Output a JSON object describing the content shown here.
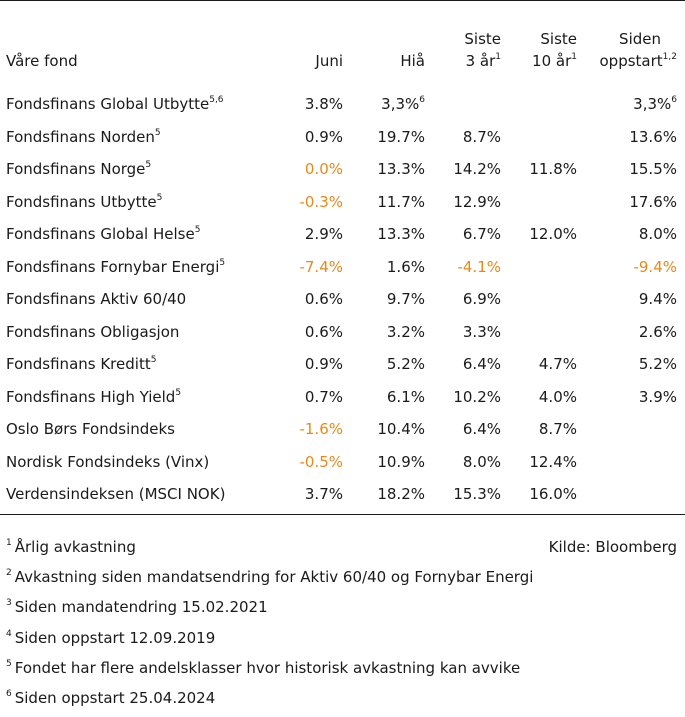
{
  "header": {
    "fund": "Våre fond",
    "juni": "Juni",
    "hia": "Hiå",
    "siste3_l1": "Siste",
    "siste3_l2": "3 år",
    "siste3_sup": "1",
    "siste10_l1": "Siste",
    "siste10_l2": "10 år",
    "siste10_sup": "1",
    "siden_l1": "Siden",
    "siden_l2": "oppstart",
    "siden_sup": "1,2"
  },
  "rows": [
    {
      "name": "Fondsfinans Global Utbytte",
      "sup": "5,6",
      "juni": "3.8%",
      "hia": "3,3%",
      "hia_sup": "6",
      "y3": "",
      "y10": "",
      "start": "3,3%",
      "start_sup": "6"
    },
    {
      "name": "Fondsfinans Norden",
      "sup": "5",
      "juni": "0.9%",
      "hia": "19.7%",
      "y3": "8.7%",
      "y10": "",
      "start": "13.6%"
    },
    {
      "name": "Fondsfinans Norge",
      "sup": "5",
      "juni": "0.0%",
      "juni_color": "#e8891a",
      "hia": "13.3%",
      "y3": "14.2%",
      "y10": "11.8%",
      "start": "15.5%"
    },
    {
      "name": "Fondsfinans Utbytte",
      "sup": "5",
      "juni": "-0.3%",
      "juni_color": "#e8891a",
      "hia": "11.7%",
      "y3": "12.9%",
      "y10": "",
      "start": "17.6%"
    },
    {
      "name": "Fondsfinans Global Helse",
      "sup": "5",
      "juni": "2.9%",
      "hia": "13.3%",
      "y3": "6.7%",
      "y10": "12.0%",
      "start": "8.0%"
    },
    {
      "name": "Fondsfinans Fornybar Energi",
      "sup": "5",
      "juni": "-7.4%",
      "juni_color": "#e8891a",
      "hia": "1.6%",
      "y3": "-4.1%",
      "y3_color": "#e8891a",
      "y10": "",
      "start": "-9.4%",
      "start_color": "#e8891a"
    },
    {
      "name": "Fondsfinans Aktiv 60/40",
      "sup": "",
      "juni": "0.6%",
      "hia": "9.7%",
      "y3": "6.9%",
      "y10": "",
      "start": "9.4%"
    },
    {
      "name": "Fondsfinans Obligasjon",
      "sup": "",
      "juni": "0.6%",
      "hia": "3.2%",
      "y3": "3.3%",
      "y10": "",
      "start": "2.6%"
    },
    {
      "name": "Fondsfinans Kreditt",
      "sup": "5",
      "juni": "0.9%",
      "hia": "5.2%",
      "y3": "6.4%",
      "y10": "4.7%",
      "start": "5.2%"
    },
    {
      "name": "Fondsfinans High Yield",
      "sup": "5",
      "juni": "0.7%",
      "hia": "6.1%",
      "y3": "10.2%",
      "y10": "4.0%",
      "start": "3.9%"
    },
    {
      "name": "Oslo Børs Fondsindeks",
      "sup": "",
      "juni": "-1.6%",
      "juni_color": "#e8891a",
      "hia": "10.4%",
      "y3": "6.4%",
      "y10": "8.7%",
      "start": ""
    },
    {
      "name": "Nordisk Fondsindeks (Vinx)",
      "sup": "",
      "juni": "-0.5%",
      "juni_color": "#e8891a",
      "hia": "10.9%",
      "y3": "8.0%",
      "y10": "12.4%",
      "start": ""
    },
    {
      "name": "Verdensindeksen (MSCI NOK)",
      "sup": "",
      "juni": "3.7%",
      "hia": "18.2%",
      "y3": "15.3%",
      "y10": "16.0%",
      "start": ""
    }
  ],
  "footnotes": [
    {
      "num": "1",
      "text": "Årlig avkastning"
    },
    {
      "num": "2",
      "text": "Avkastning siden mandatsendring for Aktiv 60/40 og Fornybar Energi"
    },
    {
      "num": "3",
      "text": "Siden mandatendring 15.02.2021"
    },
    {
      "num": "4",
      "text": "Siden oppstart 12.09.2019"
    },
    {
      "num": "5",
      "text": "Fondet har flere andelsklasser hvor historisk avkastning kan avvike"
    },
    {
      "num": "6",
      "text": "Siden oppstart 25.04.2024"
    }
  ],
  "source": "Kilde: Bloomberg",
  "colors": {
    "negative_accent": "#e8891a",
    "text": "#1a1a1a"
  }
}
